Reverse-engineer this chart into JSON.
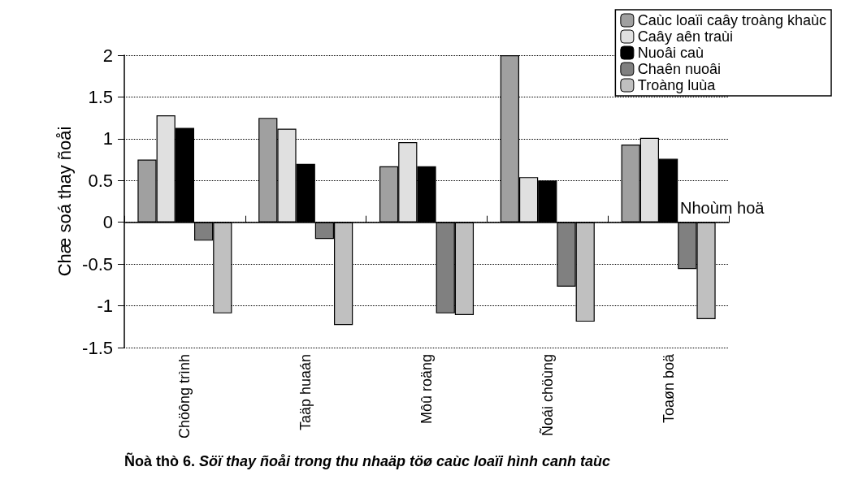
{
  "chart_data": {
    "type": "bar",
    "title": "Ñoà thò 6.",
    "subtitle": "Söï thay ñoåi trong thu nhaäp töø caùc loaïi hình canh taùc",
    "xlabel": "Nhoùm hoä",
    "ylabel": "Chæ soá thay ñoåi",
    "categories": [
      "Chöông trình",
      "Taäp huaán",
      "Môû roäng",
      "Ñoái chöùng",
      "Toaøn boä"
    ],
    "series": [
      {
        "name": "Caùc loaïi caây troàng khaùc",
        "color": "#a0a0a0",
        "values": [
          0.75,
          1.25,
          0.67,
          2.0,
          0.93
        ]
      },
      {
        "name": "Caây aên traùi",
        "color": "#e0e0e0",
        "values": [
          1.28,
          1.12,
          0.96,
          0.54,
          1.01
        ]
      },
      {
        "name": "Nuoâi caù",
        "color": "#000000",
        "values": [
          1.13,
          0.7,
          0.67,
          0.5,
          0.76
        ]
      },
      {
        "name": "Chaên nuoâi",
        "color": "#808080",
        "values": [
          -0.22,
          -0.2,
          -1.09,
          -0.77,
          -0.56
        ]
      },
      {
        "name": "Troàng luùa",
        "color": "#c0c0c0",
        "values": [
          -1.09,
          -1.23,
          -1.11,
          -1.19,
          -1.16
        ]
      }
    ],
    "ylim": [
      -1.5,
      2
    ],
    "yticks": [
      -1.5,
      -1,
      -0.5,
      0,
      0.5,
      1,
      1.5,
      2
    ],
    "grid": "y",
    "legend": "top right"
  }
}
